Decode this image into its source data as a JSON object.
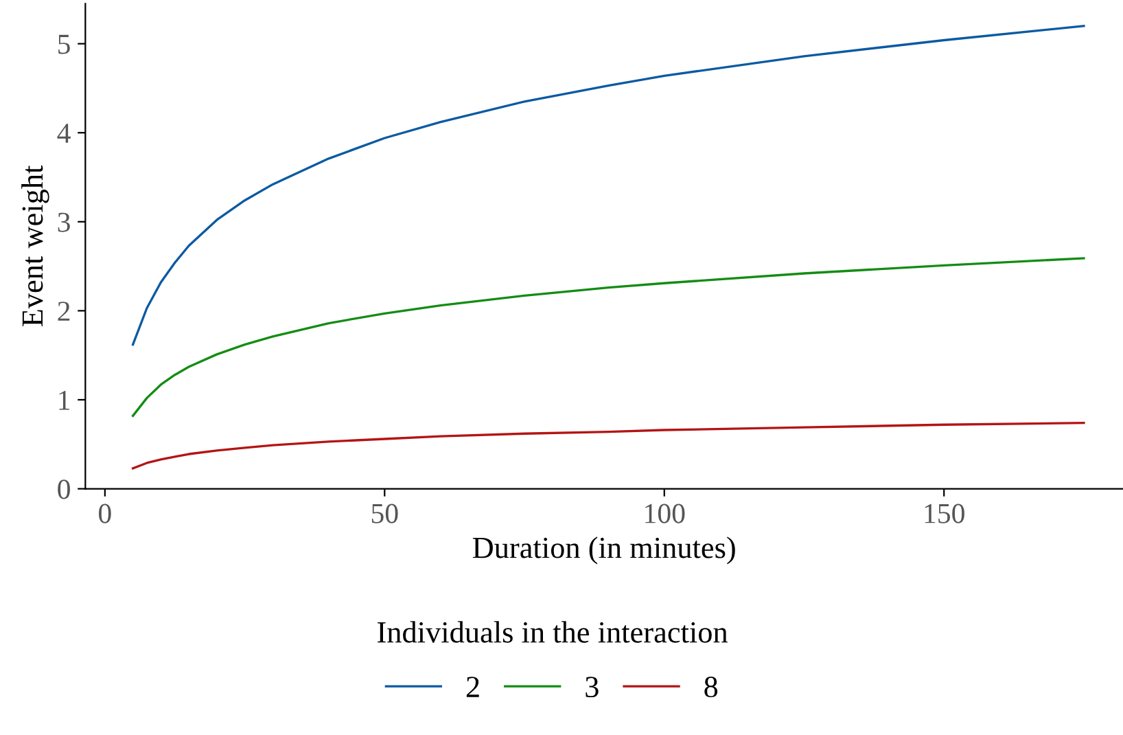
{
  "chart_data": {
    "type": "line",
    "xlabel": "Duration (in minutes)",
    "ylabel": "Event weight",
    "legend_title": "Individuals in the interaction",
    "x": [
      5,
      7.5,
      10,
      12.5,
      15,
      20,
      25,
      30,
      40,
      50,
      60,
      75,
      90,
      100,
      125,
      150,
      175
    ],
    "series": [
      {
        "name": "2",
        "color": "#0b5aa2",
        "values": [
          1.62,
          2.03,
          2.32,
          2.54,
          2.73,
          3.02,
          3.24,
          3.42,
          3.71,
          3.94,
          4.12,
          4.35,
          4.53,
          4.64,
          4.86,
          5.04,
          5.2
        ]
      },
      {
        "name": "3",
        "color": "#148c14",
        "values": [
          0.82,
          1.02,
          1.17,
          1.28,
          1.37,
          1.51,
          1.62,
          1.71,
          1.86,
          1.97,
          2.06,
          2.17,
          2.26,
          2.31,
          2.42,
          2.51,
          2.59
        ]
      },
      {
        "name": "8",
        "color": "#b41414",
        "values": [
          0.23,
          0.29,
          0.33,
          0.36,
          0.39,
          0.43,
          0.46,
          0.49,
          0.53,
          0.56,
          0.59,
          0.62,
          0.64,
          0.66,
          0.69,
          0.72,
          0.74
        ]
      }
    ],
    "xlim": [
      -3.5,
      182
    ],
    "xticks": [
      0,
      50,
      100,
      150
    ],
    "ylim": [
      0,
      5.45
    ],
    "yticks": [
      0,
      1,
      2,
      3,
      4,
      5
    ],
    "grid": false,
    "legend": "bottom",
    "marker": "none",
    "line_style": "solid"
  }
}
